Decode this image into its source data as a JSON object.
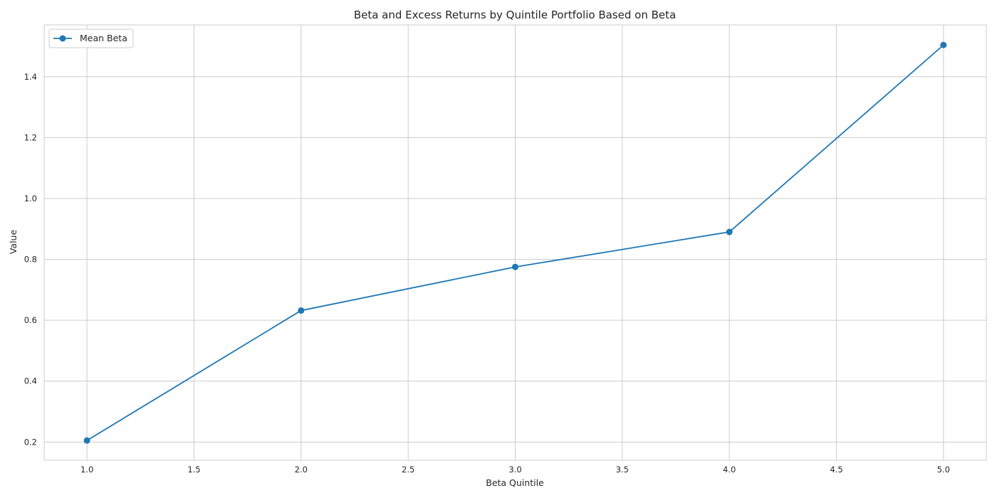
{
  "chart_data": {
    "type": "line",
    "title": "Beta and Excess Returns by Quintile Portfolio Based on Beta",
    "xlabel": "Beta Quintile",
    "ylabel": "Value",
    "x": [
      1.0,
      2.0,
      3.0,
      4.0,
      5.0
    ],
    "series": [
      {
        "name": "Mean Beta",
        "values": [
          0.205,
          0.632,
          0.775,
          0.89,
          1.504
        ],
        "color": "#1f77b4",
        "marker": "circle"
      }
    ],
    "xlim": [
      0.8,
      5.2
    ],
    "ylim": [
      0.14,
      1.57
    ],
    "xticks": [
      "1.0",
      "1.5",
      "2.0",
      "2.5",
      "3.0",
      "3.5",
      "4.0",
      "4.5",
      "5.0"
    ],
    "yticks": [
      "0.2",
      "0.4",
      "0.6",
      "0.8",
      "1.0",
      "1.2",
      "1.4"
    ],
    "grid": true,
    "legend_position": "top-left"
  }
}
